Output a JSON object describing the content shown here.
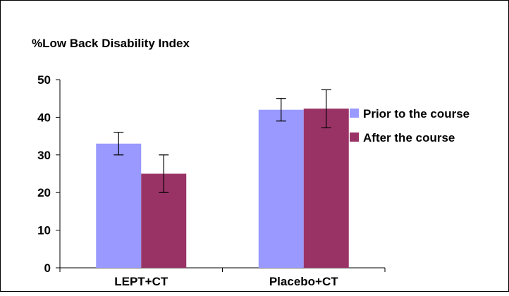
{
  "chart_data": {
    "type": "bar",
    "title": "%Low Back Disability Index",
    "xlabel": "",
    "ylabel": "",
    "categories": [
      "LEPT+CT",
      "Placebo+CT"
    ],
    "ylim": [
      0,
      50
    ],
    "yticks": [
      0,
      10,
      20,
      30,
      40,
      50
    ],
    "grid": false,
    "legend_position": "right",
    "series": [
      {
        "name": "Prior to the course",
        "color": "#9999ff",
        "values": [
          33,
          42
        ],
        "error_low": [
          30,
          39
        ],
        "error_high": [
          36,
          45
        ]
      },
      {
        "name": "After the course",
        "color": "#993366",
        "values": [
          25,
          42.3
        ],
        "error_low": [
          20,
          37.2
        ],
        "error_high": [
          30,
          47.3
        ]
      }
    ]
  }
}
